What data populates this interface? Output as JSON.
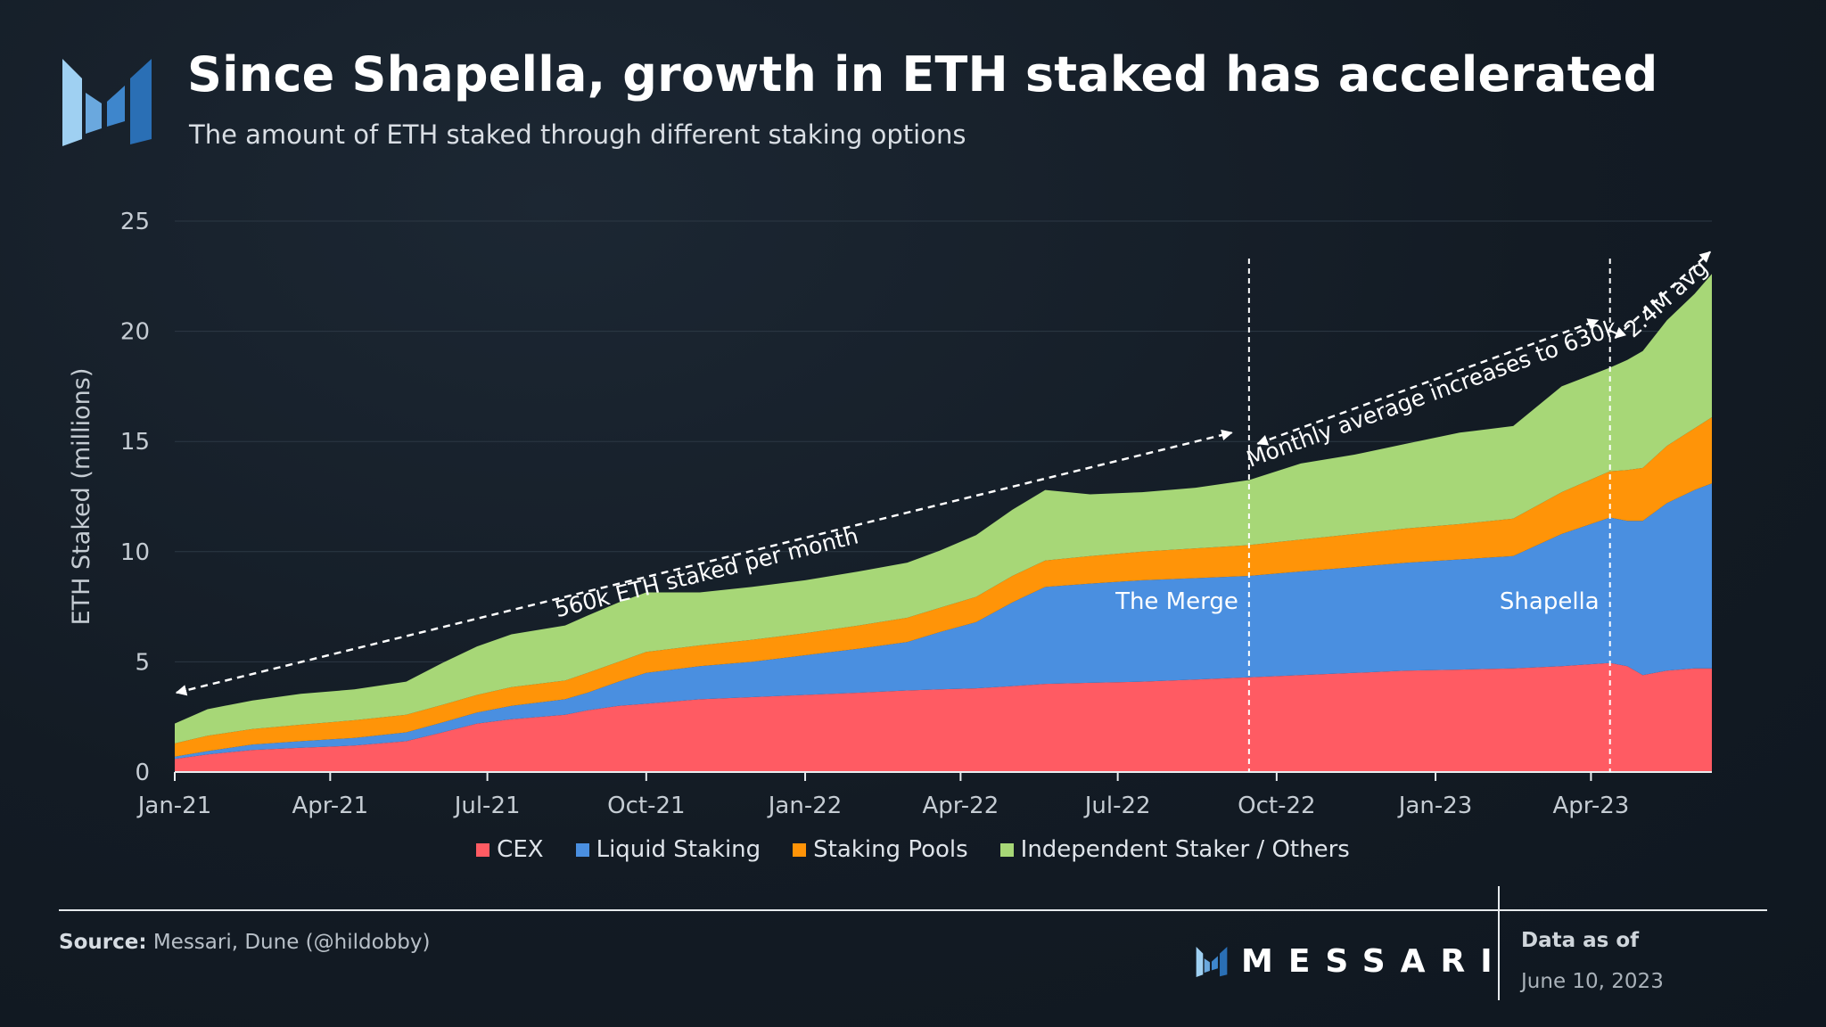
{
  "header": {
    "title": "Since Shapella, growth in ETH staked has accelerated",
    "subtitle": "The amount of ETH staked through different staking options"
  },
  "footer": {
    "source_label": "Source:",
    "source_text": "Messari, Dune (@hildobby)",
    "brand": "MESSARI",
    "as_of_label": "Data as of",
    "as_of_date": "June 10, 2023"
  },
  "colors": {
    "cex": "#ff5b63",
    "liquid_staking": "#4a8fe0",
    "staking_pools": "#ff9408",
    "independent": "#a7d777",
    "accent_logo": "#4a9fe0"
  },
  "chart_data": {
    "type": "area",
    "stacked": true,
    "title": "Since Shapella, growth in ETH staked has accelerated",
    "subtitle": "The amount of ETH staked through different staking options",
    "xlabel": "",
    "ylabel": "ETH Staked (millions)",
    "ylim": [
      0,
      25
    ],
    "yticks": [
      0,
      5,
      10,
      15,
      20,
      25
    ],
    "xlim": [
      "2021-01-01",
      "2023-06-10"
    ],
    "xticks": [
      {
        "date": "2021-01-01",
        "label": "Jan-21"
      },
      {
        "date": "2021-04-01",
        "label": "Apr-21"
      },
      {
        "date": "2021-07-01",
        "label": "Jul-21"
      },
      {
        "date": "2021-10-01",
        "label": "Oct-21"
      },
      {
        "date": "2022-01-01",
        "label": "Jan-22"
      },
      {
        "date": "2022-04-01",
        "label": "Apr-22"
      },
      {
        "date": "2022-07-01",
        "label": "Jul-22"
      },
      {
        "date": "2022-10-01",
        "label": "Oct-22"
      },
      {
        "date": "2023-01-01",
        "label": "Jan-23"
      },
      {
        "date": "2023-04-01",
        "label": "Apr-23"
      }
    ],
    "grid": true,
    "legend_position": "bottom-center",
    "x": [
      "2021-01-01",
      "2021-01-20",
      "2021-02-15",
      "2021-03-15",
      "2021-04-15",
      "2021-05-15",
      "2021-06-05",
      "2021-06-25",
      "2021-07-15",
      "2021-08-15",
      "2021-08-28",
      "2021-09-15",
      "2021-10-01",
      "2021-11-01",
      "2021-12-01",
      "2022-01-01",
      "2022-02-01",
      "2022-03-01",
      "2022-03-20",
      "2022-04-10",
      "2022-05-01",
      "2022-05-20",
      "2022-06-15",
      "2022-07-15",
      "2022-08-15",
      "2022-09-15",
      "2022-10-15",
      "2022-11-15",
      "2022-12-15",
      "2023-01-15",
      "2023-02-15",
      "2023-03-15",
      "2023-04-12",
      "2023-04-22",
      "2023-05-01",
      "2023-05-15",
      "2023-05-31",
      "2023-06-10"
    ],
    "series": [
      {
        "name": "CEX",
        "color": "#ff5b63",
        "values": [
          0.6,
          0.8,
          1.0,
          1.1,
          1.2,
          1.4,
          1.8,
          2.2,
          2.4,
          2.6,
          2.8,
          3.0,
          3.1,
          3.3,
          3.4,
          3.5,
          3.6,
          3.7,
          3.75,
          3.8,
          3.9,
          4.0,
          4.05,
          4.1,
          4.2,
          4.3,
          4.4,
          4.5,
          4.6,
          4.65,
          4.7,
          4.8,
          4.95,
          4.8,
          4.4,
          4.6,
          4.7,
          4.7
        ]
      },
      {
        "name": "Liquid Staking",
        "color": "#4a8fe0",
        "values": [
          0.1,
          0.15,
          0.25,
          0.3,
          0.35,
          0.4,
          0.45,
          0.5,
          0.6,
          0.7,
          0.8,
          1.1,
          1.4,
          1.5,
          1.6,
          1.8,
          2.0,
          2.2,
          2.6,
          3.0,
          3.8,
          4.4,
          4.5,
          4.6,
          4.6,
          4.6,
          4.7,
          4.8,
          4.9,
          5.0,
          5.1,
          6.0,
          6.6,
          6.6,
          7.0,
          7.6,
          8.1,
          8.4
        ]
      },
      {
        "name": "Staking Pools",
        "color": "#ff9408",
        "values": [
          0.6,
          0.7,
          0.7,
          0.75,
          0.8,
          0.8,
          0.8,
          0.8,
          0.85,
          0.85,
          0.9,
          0.9,
          0.95,
          0.95,
          1.0,
          1.0,
          1.05,
          1.1,
          1.1,
          1.15,
          1.2,
          1.2,
          1.25,
          1.3,
          1.35,
          1.4,
          1.45,
          1.5,
          1.55,
          1.6,
          1.7,
          1.9,
          2.1,
          2.3,
          2.4,
          2.6,
          2.8,
          3.0
        ]
      },
      {
        "name": "Independent Staker / Others",
        "color": "#a7d777",
        "values": [
          0.9,
          1.2,
          1.3,
          1.4,
          1.4,
          1.5,
          1.9,
          2.2,
          2.4,
          2.5,
          2.6,
          2.7,
          2.7,
          2.4,
          2.4,
          2.4,
          2.45,
          2.5,
          2.6,
          2.8,
          3.0,
          3.2,
          2.8,
          2.7,
          2.75,
          2.95,
          3.45,
          3.6,
          3.85,
          4.15,
          4.2,
          4.8,
          4.7,
          5.0,
          5.3,
          5.7,
          6.1,
          6.5
        ]
      }
    ],
    "annotations": [
      {
        "text": "560k ETH staked per month",
        "from": {
          "x": "2021-01-02",
          "y": 3.6
        },
        "to": {
          "x": "2022-09-05",
          "y": 15.4
        }
      },
      {
        "text": "Monthly average increases to 630k",
        "from": {
          "x": "2022-09-20",
          "y": 14.9
        },
        "to": {
          "x": "2023-04-05",
          "y": 20.5
        }
      },
      {
        "text": "2.4M avg",
        "from": {
          "x": "2023-04-15",
          "y": 19.7
        },
        "to": {
          "x": "2023-06-09",
          "y": 23.6
        }
      }
    ],
    "event_lines": [
      {
        "label": "The Merge",
        "x": "2022-09-15",
        "label_y": 7.4
      },
      {
        "label": "Shapella",
        "x": "2023-04-12",
        "label_y": 7.4
      }
    ]
  }
}
